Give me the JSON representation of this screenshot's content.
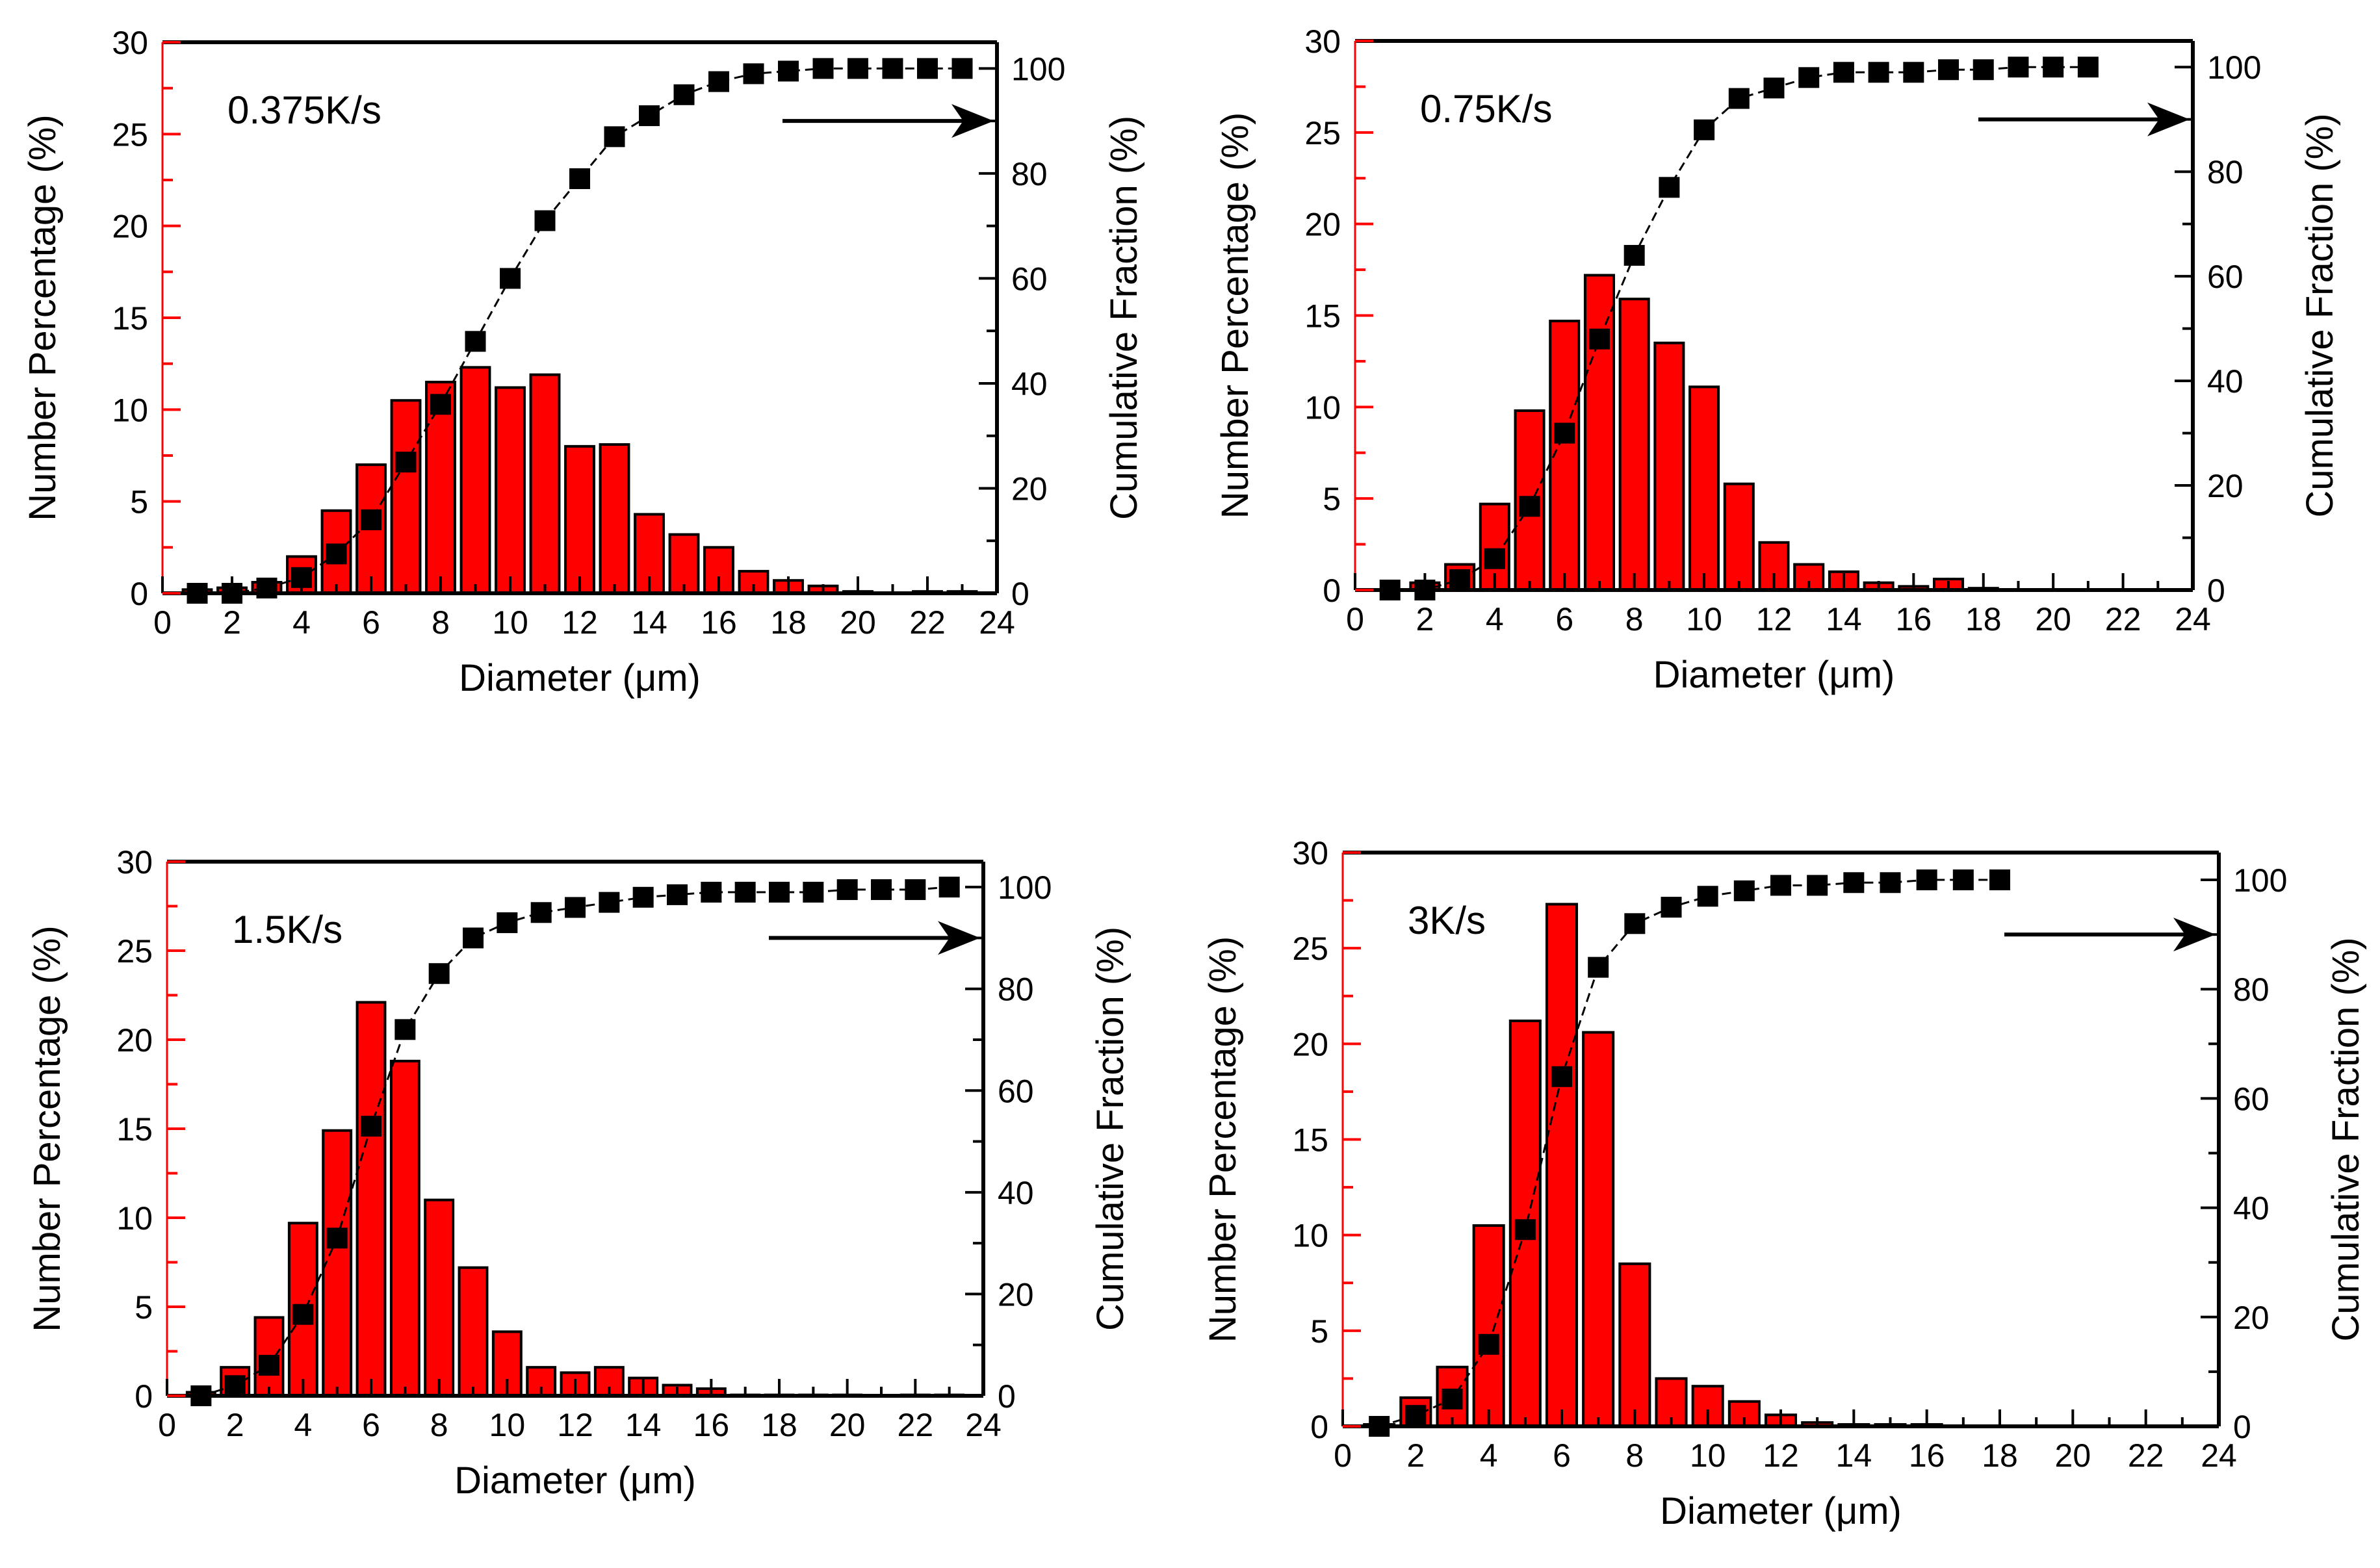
{
  "colors": {
    "bar": "#ff0000",
    "marker": "#000000",
    "left_axis": "#ff0000"
  },
  "chart_data": [
    {
      "type": "bar+line",
      "annotation": "0.375K/s",
      "xlabel": "Diameter (μm)",
      "ylabel": "Number Percentage (%)",
      "y2label": "Cumulative Fraction (%)",
      "xlim": [
        0,
        24
      ],
      "ylim": [
        0,
        30
      ],
      "y2lim": [
        0,
        105
      ],
      "xticks": [
        "0",
        "2",
        "4",
        "6",
        "8",
        "10",
        "12",
        "14",
        "16",
        "18",
        "20",
        "22",
        "24"
      ],
      "yticks": [
        "0",
        "5",
        "10",
        "15",
        "20",
        "25",
        "30"
      ],
      "y2ticks": [
        "0",
        "20",
        "40",
        "60",
        "80",
        "100"
      ],
      "bars": {
        "x": [
          1,
          2,
          3,
          4,
          5,
          6,
          7,
          8,
          9,
          10,
          11,
          12,
          13,
          14,
          15,
          16,
          17,
          18,
          19,
          20,
          21,
          22,
          23
        ],
        "values": [
          0.2,
          0.3,
          0.6,
          2.0,
          4.5,
          7.0,
          10.5,
          11.5,
          12.3,
          11.2,
          11.9,
          8.0,
          8.1,
          4.3,
          3.2,
          2.5,
          1.2,
          0.7,
          0.4,
          0.1,
          0,
          0.1,
          0.1
        ]
      },
      "cumulative": {
        "x": [
          1,
          2,
          3,
          4,
          5,
          6,
          7,
          8,
          9,
          10,
          11,
          12,
          13,
          14,
          15,
          16,
          17,
          18,
          19,
          20,
          21,
          22,
          23
        ],
        "values": [
          0,
          0,
          1,
          3,
          7.5,
          14,
          25,
          36,
          48,
          60,
          71,
          79,
          87,
          91,
          95,
          97.5,
          99,
          99.5,
          100,
          100,
          100,
          100,
          100
        ]
      }
    },
    {
      "type": "bar+line",
      "annotation": "0.75K/s",
      "xlabel": "Diameter (μm)",
      "ylabel": "Number Percentage (%)",
      "y2label": "Cumulative Fraction (%)",
      "xlim": [
        0,
        24
      ],
      "ylim": [
        0,
        30
      ],
      "y2lim": [
        0,
        105
      ],
      "xticks": [
        "0",
        "2",
        "4",
        "6",
        "8",
        "10",
        "12",
        "14",
        "16",
        "18",
        "20",
        "22",
        "24"
      ],
      "yticks": [
        "0",
        "5",
        "10",
        "15",
        "20",
        "25",
        "30"
      ],
      "y2ticks": [
        "0",
        "20",
        "40",
        "60",
        "80",
        "100"
      ],
      "bars": {
        "x": [
          1,
          2,
          3,
          4,
          5,
          6,
          7,
          8,
          9,
          10,
          11,
          12,
          13,
          14,
          15,
          16,
          17,
          18
        ],
        "values": [
          0,
          0.4,
          1.4,
          4.7,
          9.8,
          14.7,
          17.2,
          15.9,
          13.5,
          11.1,
          5.8,
          2.6,
          1.4,
          1.0,
          0.4,
          0.2,
          0.6,
          0.1
        ]
      },
      "cumulative": {
        "x": [
          1,
          2,
          3,
          4,
          5,
          6,
          7,
          8,
          9,
          10,
          11,
          12,
          13,
          14,
          15,
          16,
          17,
          18,
          19,
          20,
          21
        ],
        "values": [
          0,
          0,
          2,
          6,
          16,
          30,
          48,
          64,
          77,
          88,
          94,
          96,
          98,
          99,
          99,
          99,
          99.5,
          99.5,
          100,
          100,
          100
        ]
      }
    },
    {
      "type": "bar+line",
      "annotation": "1.5K/s",
      "xlabel": "Diameter (μm)",
      "ylabel": "Number Percentage (%)",
      "y2label": "Cumulative Fraction (%)",
      "xlim": [
        0,
        24
      ],
      "ylim": [
        0,
        30
      ],
      "y2lim": [
        0,
        105
      ],
      "xticks": [
        "0",
        "2",
        "4",
        "6",
        "8",
        "10",
        "12",
        "14",
        "16",
        "18",
        "20",
        "22",
        "24"
      ],
      "yticks": [
        "0",
        "5",
        "10",
        "15",
        "20",
        "25",
        "30"
      ],
      "y2ticks": [
        "0",
        "20",
        "40",
        "60",
        "80",
        "100"
      ],
      "bars": {
        "x": [
          1,
          2,
          3,
          4,
          5,
          6,
          7,
          8,
          9,
          10,
          11,
          12,
          13,
          14,
          15,
          16,
          17,
          18,
          19,
          20,
          21,
          22,
          23
        ],
        "values": [
          0.2,
          1.6,
          4.4,
          9.7,
          14.9,
          22.1,
          18.8,
          11.0,
          7.2,
          3.6,
          1.6,
          1.3,
          1.6,
          1.0,
          0.6,
          0.4,
          0.05,
          0.05,
          0.05,
          0.05,
          0,
          0.05,
          0.05
        ]
      },
      "cumulative": {
        "x": [
          1,
          2,
          3,
          4,
          5,
          6,
          7,
          8,
          9,
          10,
          11,
          12,
          13,
          14,
          15,
          16,
          17,
          18,
          19,
          20,
          21,
          22,
          23
        ],
        "values": [
          0,
          2,
          6,
          16,
          31,
          53,
          72,
          83,
          90,
          93,
          95,
          96,
          97,
          98,
          98.5,
          99,
          99,
          99,
          99,
          99.5,
          99.5,
          99.5,
          100
        ]
      }
    },
    {
      "type": "bar+line",
      "annotation": "3K/s",
      "xlabel": "Diameter (μm)",
      "ylabel": "Number Percentage (%)",
      "y2label": "Cumulative Fraction (%)",
      "xlim": [
        0,
        24
      ],
      "ylim": [
        0,
        30
      ],
      "y2lim": [
        0,
        105
      ],
      "xticks": [
        "0",
        "2",
        "4",
        "6",
        "8",
        "10",
        "12",
        "14",
        "16",
        "18",
        "20",
        "22",
        "24"
      ],
      "yticks": [
        "0",
        "5",
        "10",
        "15",
        "20",
        "25",
        "30"
      ],
      "y2ticks": [
        "0",
        "20",
        "40",
        "60",
        "80",
        "100"
      ],
      "bars": {
        "x": [
          1,
          2,
          3,
          4,
          5,
          6,
          7,
          8,
          9,
          10,
          11,
          12,
          13,
          14,
          15,
          16
        ],
        "values": [
          0.1,
          1.5,
          3.1,
          10.5,
          21.2,
          27.3,
          20.6,
          8.5,
          2.5,
          2.1,
          1.3,
          0.6,
          0.2,
          0.1,
          0.1,
          0.1
        ]
      },
      "cumulative": {
        "x": [
          1,
          2,
          3,
          4,
          5,
          6,
          7,
          8,
          9,
          10,
          11,
          12,
          13,
          14,
          15,
          16,
          17,
          18
        ],
        "values": [
          0,
          2,
          5,
          15,
          36,
          64,
          84,
          92,
          95,
          97,
          98,
          99,
          99,
          99.5,
          99.5,
          100,
          100,
          100
        ]
      }
    }
  ]
}
